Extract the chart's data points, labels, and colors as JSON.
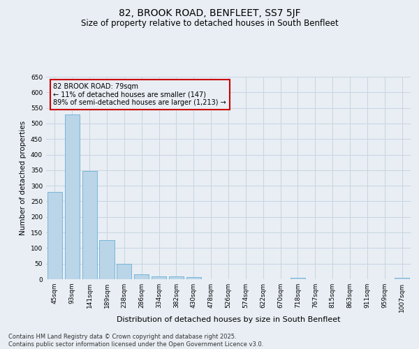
{
  "title": "82, BROOK ROAD, BENFLEET, SS7 5JF",
  "subtitle": "Size of property relative to detached houses in South Benfleet",
  "xlabel": "Distribution of detached houses by size in South Benfleet",
  "ylabel": "Number of detached properties",
  "categories": [
    "45sqm",
    "93sqm",
    "141sqm",
    "189sqm",
    "238sqm",
    "286sqm",
    "334sqm",
    "382sqm",
    "430sqm",
    "478sqm",
    "526sqm",
    "574sqm",
    "622sqm",
    "670sqm",
    "718sqm",
    "767sqm",
    "815sqm",
    "863sqm",
    "911sqm",
    "959sqm",
    "1007sqm"
  ],
  "values": [
    280,
    530,
    347,
    125,
    50,
    15,
    10,
    8,
    6,
    0,
    0,
    0,
    0,
    0,
    4,
    0,
    0,
    0,
    0,
    0,
    4
  ],
  "bar_color": "#bad4e8",
  "bar_edge_color": "#6aafd4",
  "grid_color": "#c8d4e0",
  "background_color": "#e8eef4",
  "annotation_box_text": "82 BROOK ROAD: 79sqm\n← 11% of detached houses are smaller (147)\n89% of semi-detached houses are larger (1,213) →",
  "annotation_box_color": "#cc0000",
  "ylim": [
    0,
    650
  ],
  "yticks": [
    0,
    50,
    100,
    150,
    200,
    250,
    300,
    350,
    400,
    450,
    500,
    550,
    600,
    650
  ],
  "footnote": "Contains HM Land Registry data © Crown copyright and database right 2025.\nContains public sector information licensed under the Open Government Licence v3.0.",
  "title_fontsize": 10,
  "subtitle_fontsize": 8.5,
  "xlabel_fontsize": 8,
  "ylabel_fontsize": 7.5,
  "tick_fontsize": 6.5,
  "annotation_fontsize": 7,
  "footnote_fontsize": 6
}
